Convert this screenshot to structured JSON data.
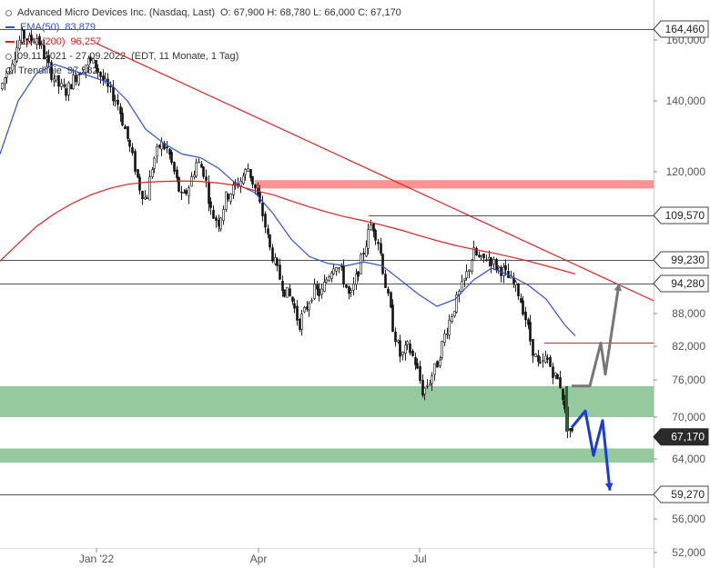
{
  "header": {
    "instrument": "Advanced Micro Devices Inc. (Nasdaq, Last)",
    "ohlc": "O: 67,900  H: 68,780  L: 66,000  C: 67,170",
    "ema50_label": "EMA(50)",
    "ema50_value": "83,879",
    "ema200_label": "EMA(200)",
    "ema200_value": "96,257",
    "range": "09.11.2021 - 27.09.2022",
    "range_note": "(EDT, 11 Monate, 1 Tag)",
    "trend_label": "Trendlinie",
    "trend_value": "97,582"
  },
  "colors": {
    "ema50": "#2f4fd8",
    "ema200": "#e02020",
    "trendline": "#e02020",
    "resistance_zone": "#ff8080",
    "support_zone": "#8fc79a",
    "bullish_arrow": "#777777",
    "bearish_arrow": "#1a3adf",
    "price_badge": "#2a2a2a"
  },
  "chart_data": {
    "type": "candlestick",
    "x_ticks": [
      "Jan '22",
      "Apr",
      "Jul"
    ],
    "y_ticks": [
      52000,
      56000,
      64000,
      70000,
      76000,
      82000,
      88000,
      120000,
      140000,
      160000
    ],
    "y_tick_labels": [
      "52,000",
      "56,000",
      "64,000",
      "70,000",
      "76,000",
      "82,000",
      "88,000",
      "120,000",
      "140,000",
      "160,000"
    ],
    "price_badges": [
      {
        "value": 164460,
        "label": "164,460"
      },
      {
        "value": 109570,
        "label": "109,570"
      },
      {
        "value": 99230,
        "label": "99,230"
      },
      {
        "value": 94280,
        "label": "94,280"
      },
      {
        "value": 67170,
        "label": "67,170"
      },
      {
        "value": 59270,
        "label": "59,270"
      }
    ],
    "ylim": [
      50000,
      172000
    ],
    "grid": false,
    "legend_position": "top-left",
    "series": [
      {
        "name": "EMA(50)",
        "points": [
          [
            0,
            125000
          ],
          [
            20,
            140000
          ],
          [
            40,
            149000
          ],
          [
            60,
            152000
          ],
          [
            80,
            150000
          ],
          [
            100,
            148000
          ],
          [
            120,
            146000
          ],
          [
            140,
            140000
          ],
          [
            160,
            132000
          ],
          [
            180,
            128000
          ],
          [
            200,
            125000
          ],
          [
            220,
            124000
          ],
          [
            240,
            121000
          ],
          [
            260,
            117000
          ],
          [
            280,
            115000
          ],
          [
            300,
            110000
          ],
          [
            320,
            104000
          ],
          [
            340,
            100000
          ],
          [
            360,
            98500
          ],
          [
            380,
            98000
          ],
          [
            400,
            98800
          ],
          [
            420,
            98000
          ],
          [
            440,
            95000
          ],
          [
            460,
            92000
          ],
          [
            480,
            89500
          ],
          [
            500,
            91000
          ],
          [
            520,
            95000
          ],
          [
            540,
            97500
          ],
          [
            560,
            96000
          ],
          [
            580,
            94000
          ],
          [
            600,
            91000
          ],
          [
            620,
            86000
          ],
          [
            632,
            83900
          ]
        ]
      },
      {
        "name": "EMA(200)",
        "points": [
          [
            0,
            99000
          ],
          [
            20,
            103000
          ],
          [
            40,
            107000
          ],
          [
            60,
            110000
          ],
          [
            80,
            112500
          ],
          [
            100,
            114500
          ],
          [
            120,
            116000
          ],
          [
            140,
            117000
          ],
          [
            160,
            117500
          ],
          [
            180,
            117700
          ],
          [
            200,
            117800
          ],
          [
            220,
            117700
          ],
          [
            240,
            117300
          ],
          [
            260,
            116700
          ],
          [
            280,
            115500
          ],
          [
            300,
            114500
          ],
          [
            320,
            113000
          ],
          [
            340,
            111600
          ],
          [
            360,
            110300
          ],
          [
            380,
            109200
          ],
          [
            400,
            108300
          ],
          [
            420,
            107300
          ],
          [
            440,
            106200
          ],
          [
            460,
            104900
          ],
          [
            480,
            103700
          ],
          [
            500,
            102600
          ],
          [
            520,
            101700
          ],
          [
            540,
            100900
          ],
          [
            560,
            100000
          ],
          [
            580,
            99000
          ],
          [
            600,
            98000
          ],
          [
            632,
            96300
          ]
        ]
      }
    ],
    "candles_anchor_path": [
      [
        0,
        144000
      ],
      [
        8,
        150000
      ],
      [
        16,
        156000
      ],
      [
        24,
        162000
      ],
      [
        32,
        160000
      ],
      [
        40,
        161000
      ],
      [
        48,
        155000
      ],
      [
        56,
        149000
      ],
      [
        64,
        145000
      ],
      [
        72,
        143000
      ],
      [
        80,
        147000
      ],
      [
        88,
        150000
      ],
      [
        96,
        153000
      ],
      [
        104,
        152000
      ],
      [
        112,
        147000
      ],
      [
        120,
        143000
      ],
      [
        128,
        140000
      ],
      [
        136,
        133000
      ],
      [
        144,
        125000
      ],
      [
        152,
        117000
      ],
      [
        160,
        113000
      ],
      [
        168,
        123000
      ],
      [
        176,
        128000
      ],
      [
        184,
        126000
      ],
      [
        192,
        119000
      ],
      [
        200,
        113000
      ],
      [
        208,
        117000
      ],
      [
        216,
        123000
      ],
      [
        224,
        120000
      ],
      [
        232,
        110000
      ],
      [
        240,
        108000
      ],
      [
        248,
        114000
      ],
      [
        256,
        116000
      ],
      [
        264,
        118000
      ],
      [
        272,
        121000
      ],
      [
        280,
        116000
      ],
      [
        288,
        110000
      ],
      [
        296,
        102000
      ],
      [
        304,
        97000
      ],
      [
        312,
        93000
      ],
      [
        320,
        91000
      ],
      [
        328,
        86000
      ],
      [
        336,
        89000
      ],
      [
        344,
        93000
      ],
      [
        352,
        92000
      ],
      [
        360,
        96000
      ],
      [
        368,
        99000
      ],
      [
        376,
        96000
      ],
      [
        384,
        91000
      ],
      [
        392,
        96000
      ],
      [
        400,
        102000
      ],
      [
        408,
        108000
      ],
      [
        416,
        103000
      ],
      [
        424,
        93000
      ],
      [
        432,
        85000
      ],
      [
        440,
        80000
      ],
      [
        448,
        82000
      ],
      [
        456,
        79000
      ],
      [
        464,
        74000
      ],
      [
        472,
        76000
      ],
      [
        480,
        79000
      ],
      [
        488,
        84000
      ],
      [
        496,
        88000
      ],
      [
        504,
        92000
      ],
      [
        512,
        96000
      ],
      [
        520,
        101000
      ],
      [
        528,
        99000
      ],
      [
        536,
        100000
      ],
      [
        544,
        98000
      ],
      [
        552,
        97000
      ],
      [
        560,
        95000
      ],
      [
        568,
        93000
      ],
      [
        576,
        88000
      ],
      [
        584,
        82000
      ],
      [
        592,
        78000
      ],
      [
        600,
        80000
      ],
      [
        608,
        77000
      ],
      [
        616,
        75000
      ],
      [
        622,
        69000
      ],
      [
        630,
        67170
      ]
    ],
    "trendline": {
      "label": "Trendlinie",
      "from": [
        105,
        159000
      ],
      "to": [
        720,
        90500
      ]
    },
    "horizontal_lines": [
      164460,
      109570,
      99230,
      94280,
      82700,
      59270
    ],
    "zones": [
      {
        "label": "resistance",
        "from": 116000,
        "to": 118000
      },
      {
        "label": "support-upper",
        "from": 70000,
        "to": 75000
      },
      {
        "label": "support-lower",
        "from": 63500,
        "to": 65500
      }
    ],
    "projection_bullish": [
      [
        628,
        75000
      ],
      [
        648,
        75000
      ],
      [
        660,
        82600
      ],
      [
        665,
        77000
      ],
      [
        680,
        94280
      ]
    ],
    "projection_bearish": [
      [
        628,
        68500
      ],
      [
        643,
        71000
      ],
      [
        652,
        64500
      ],
      [
        662,
        69500
      ],
      [
        670,
        59800
      ]
    ]
  }
}
